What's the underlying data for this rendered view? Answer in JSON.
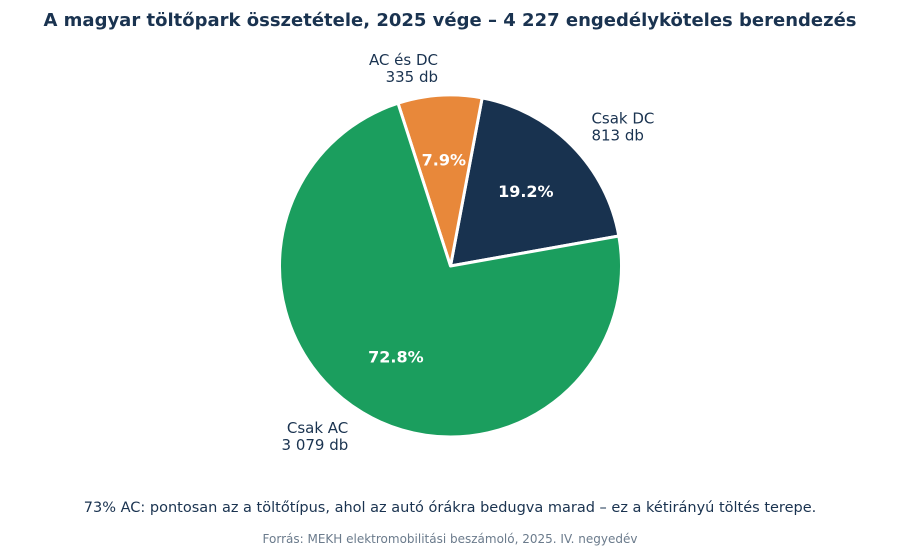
{
  "chart_data": {
    "type": "pie",
    "title": "A magyar töltőpark összetétele, 2025 vége – 4 227 engedélyköteles berendezés",
    "slices": [
      {
        "name": "Csak DC",
        "count_label": "813 db",
        "value": 813,
        "percent_label": "19.2%",
        "color": "#18324f"
      },
      {
        "name": "AC és DC",
        "count_label": "335 db",
        "value": 335,
        "percent_label": "7.9%",
        "color": "#e8883a"
      },
      {
        "name": "Csak AC",
        "count_label": "3 079 db",
        "value": 3079,
        "percent_label": "72.8%",
        "color": "#1b9e5e"
      }
    ]
  },
  "caption": "73% AC: pontosan az a töltőtípus, ahol az autó órákra bedugva marad – ez a kétirányú töltés terepe.",
  "source": "Forrás: MEKH elektromobilitási beszámoló, 2025. IV. negyedév"
}
